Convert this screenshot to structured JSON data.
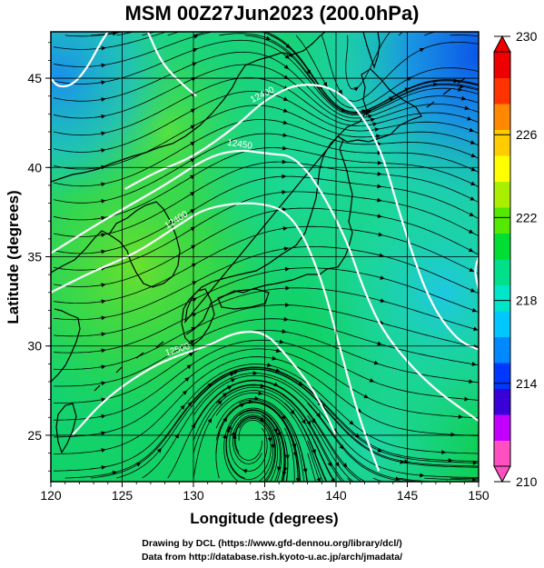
{
  "title": "MSM 00Z27Jun2023 (200.0hPa)",
  "credits": {
    "line1": "Drawing by DCL (https://www.gfd-dennou.org/library/dcl/)",
    "line2": "Data from http://database.rish.kyoto-u.ac.jp/arch/jmadata/"
  },
  "chart_data": {
    "type": "map",
    "xlabel": "Longitude (degrees)",
    "ylabel": "Latitude  (degrees)",
    "xlim": [
      120,
      150
    ],
    "ylim": [
      22.4,
      47.6
    ],
    "xticks": [
      120,
      125,
      130,
      135,
      140,
      145,
      150
    ],
    "yticks": [
      25,
      30,
      35,
      40,
      45
    ],
    "grid": true,
    "field": "temperature (K) shaded, geopotential height contours, streamlines",
    "colorbar": {
      "min": 210,
      "max": 230,
      "ticks": [
        210,
        214,
        218,
        222,
        226,
        230
      ],
      "colors": [
        "#ff4fc0",
        "#c300ff",
        "#3a00d8",
        "#0038ff",
        "#0088ff",
        "#00c8ff",
        "#00e6c8",
        "#00e08a",
        "#00dd33",
        "#55e800",
        "#aaee00",
        "#ffff00",
        "#ffcc00",
        "#ff8800",
        "#ff3300",
        "#ee0000"
      ]
    },
    "contours": [
      {
        "label": "12400",
        "points": [
          [
            125.2,
            38.8
          ],
          [
            127.5,
            39.8
          ],
          [
            130,
            40.6
          ],
          [
            133,
            42.3
          ],
          [
            135,
            43.8
          ],
          [
            137.5,
            44.8
          ],
          [
            140.5,
            44.3
          ],
          [
            143,
            41.5
          ],
          [
            144.6,
            37
          ],
          [
            146.5,
            32.5
          ],
          [
            148.5,
            30.3
          ],
          [
            150,
            29.8
          ]
        ]
      },
      {
        "label": "12450",
        "points": [
          [
            120,
            35.2
          ],
          [
            124,
            37.2
          ],
          [
            128,
            39
          ],
          [
            131,
            40.6
          ],
          [
            133.2,
            41
          ],
          [
            135,
            40.8
          ],
          [
            137.5,
            40.6
          ],
          [
            140.5,
            36.5
          ],
          [
            142,
            33
          ],
          [
            143.5,
            30.5
          ],
          [
            146.5,
            27.8
          ],
          [
            150,
            25.8
          ]
        ]
      },
      {
        "label": "12400",
        "points": [
          [
            120,
            33
          ],
          [
            123,
            34.2
          ],
          [
            126,
            35.2
          ],
          [
            129,
            36.8
          ],
          [
            131,
            37.8
          ],
          [
            134.5,
            38.1
          ],
          [
            137,
            37.4
          ],
          [
            139,
            33.8
          ],
          [
            140.3,
            29.8
          ],
          [
            141.6,
            26
          ],
          [
            143,
            23
          ]
        ]
      },
      {
        "label": "12500",
        "points": [
          [
            121.5,
            25
          ],
          [
            124,
            27.2
          ],
          [
            127,
            28.8
          ],
          [
            129,
            29.5
          ],
          [
            131,
            30
          ],
          [
            133,
            30.8
          ],
          [
            135,
            30.8
          ],
          [
            136.5,
            29.5
          ],
          [
            138.5,
            27.5
          ],
          [
            140,
            25
          ]
        ]
      },
      {
        "label": "",
        "points": [
          [
            126.8,
            47.6
          ],
          [
            127.8,
            45.8
          ],
          [
            129.3,
            44.6
          ],
          [
            130.2,
            44
          ]
        ]
      },
      {
        "label": "",
        "points": [
          [
            150,
            35
          ],
          [
            149.7,
            34.2
          ],
          [
            150,
            33.2
          ]
        ]
      },
      {
        "label": "",
        "points": [
          [
            120,
            45
          ],
          [
            120.5,
            44.5
          ],
          [
            121.5,
            44.6
          ],
          [
            122.5,
            45.5
          ],
          [
            123.5,
            47
          ],
          [
            124,
            47.6
          ]
        ]
      }
    ]
  }
}
